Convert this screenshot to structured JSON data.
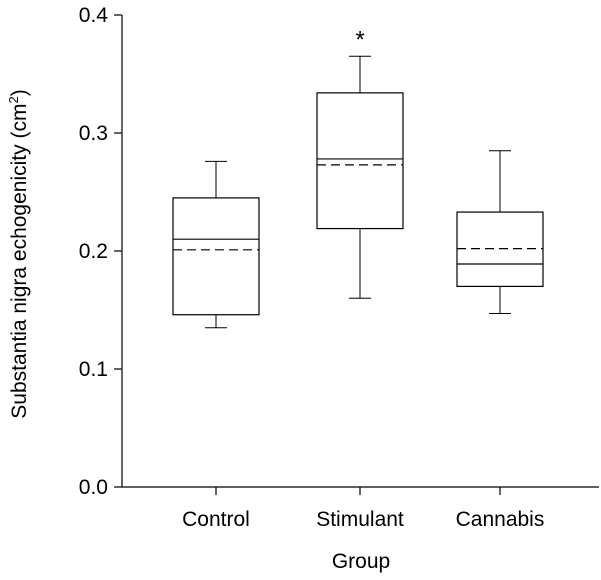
{
  "chart_data": {
    "type": "box",
    "title": "",
    "xlabel": "Group",
    "ylabel_main": "Substantia nigra echogenicity (cm",
    "ylabel_sup": "2",
    "ylabel_close": ")",
    "ylim": [
      0,
      0.4
    ],
    "yticks": [
      "0.0",
      "0.1",
      "0.2",
      "0.3",
      "0.4"
    ],
    "grid": false,
    "categories": [
      "Control",
      "Stimulant",
      "Cannabis"
    ],
    "boxes": [
      {
        "group": "Control",
        "whisker_low": 0.135,
        "q1": 0.146,
        "median": 0.21,
        "mean": 0.201,
        "q3": 0.245,
        "whisker_high": 0.276,
        "annotation": ""
      },
      {
        "group": "Stimulant",
        "whisker_low": 0.16,
        "q1": 0.219,
        "median": 0.278,
        "mean": 0.273,
        "q3": 0.334,
        "whisker_high": 0.365,
        "annotation": "*"
      },
      {
        "group": "Cannabis",
        "whisker_low": 0.147,
        "q1": 0.17,
        "median": 0.189,
        "mean": 0.202,
        "q3": 0.233,
        "whisker_high": 0.285,
        "annotation": ""
      }
    ],
    "median_line_style": "solid",
    "mean_line_style": "dashed"
  }
}
